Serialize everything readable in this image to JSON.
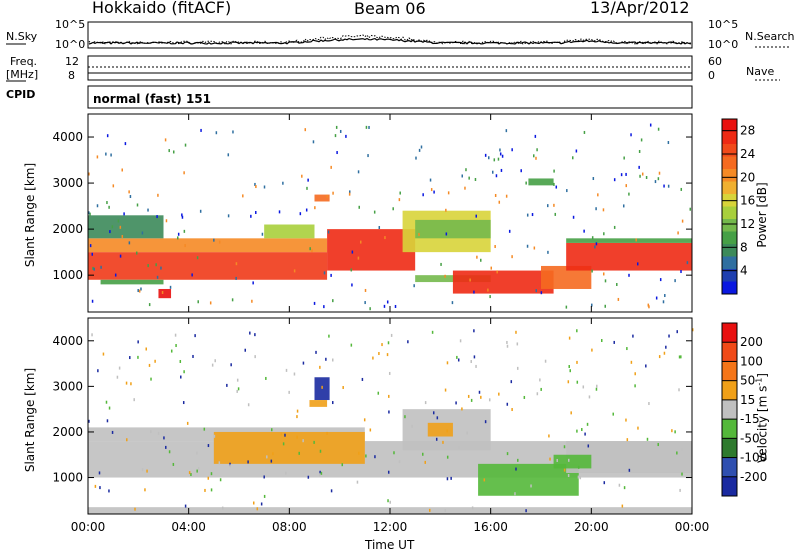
{
  "header": {
    "radar": "Hokkaido (fitACF)",
    "beam": "Beam 06",
    "date": "13/Apr/2012"
  },
  "panels": {
    "nsky_label": "N.Sky",
    "nsearch_label": "N.Search",
    "freq_label_top": "Freq.",
    "freq_label_unit": "[MHz]",
    "nave_label": "Nave",
    "cpid_label": "CPID",
    "cpid_value": "normal (fast) 151",
    "nsky_ticks": [
      "10^5",
      "10^0"
    ],
    "nsearch_ticks": [
      "10^5",
      "10^0"
    ],
    "freq_ticks": [
      "8",
      "12"
    ],
    "nave_ticks": [
      "0",
      "60"
    ]
  },
  "chart_data": [
    {
      "type": "heatmap",
      "title": "",
      "xlabel": "Time UT",
      "ylabel": "Slant Range [km]",
      "x_ticks": [
        "00:00",
        "04:00",
        "08:00",
        "12:00",
        "16:00",
        "20:00",
        "00:00"
      ],
      "y_ticks": [
        1000,
        2000,
        3000,
        4000
      ],
      "ylim": [
        200,
        4500
      ],
      "xlim_hours": [
        0,
        24
      ],
      "colorbar": {
        "label": "Power [dB]",
        "ticks": [
          4,
          8,
          12,
          16,
          20,
          24,
          28
        ],
        "range": [
          0,
          30
        ],
        "colors": [
          "#0a18e0",
          "#1e3fb0",
          "#2f6fa0",
          "#3c8a5a",
          "#46a046",
          "#74b94c",
          "#a8cf3c",
          "#d8d43a",
          "#f0b030",
          "#f58a25",
          "#f56a20",
          "#f24a1a",
          "#ee2a14",
          "#e8100e"
        ]
      }
    },
    {
      "type": "heatmap",
      "title": "",
      "xlabel": "Time UT",
      "ylabel": "Slant Range [km]",
      "x_ticks": [
        "00:00",
        "04:00",
        "08:00",
        "12:00",
        "16:00",
        "20:00",
        "00:00"
      ],
      "y_ticks": [
        1000,
        2000,
        3000,
        4000
      ],
      "ylim": [
        200,
        4500
      ],
      "xlim_hours": [
        0,
        24
      ],
      "colorbar": {
        "label_main": "Velocity [m s",
        "label_sup": "-1",
        "label_end": "]",
        "ticks": [
          "200",
          "100",
          "50",
          "15",
          "-15",
          "-50",
          "-100",
          "-200"
        ],
        "colors": [
          "#1a2aa0",
          "#2f4fb0",
          "#2e7a2e",
          "#54b83a",
          "#c0c0c0",
          "#f0a018",
          "#f57518",
          "#f04a18",
          "#e81010"
        ]
      }
    }
  ],
  "colors": {
    "ground_scatter": "#bdbdbd"
  }
}
